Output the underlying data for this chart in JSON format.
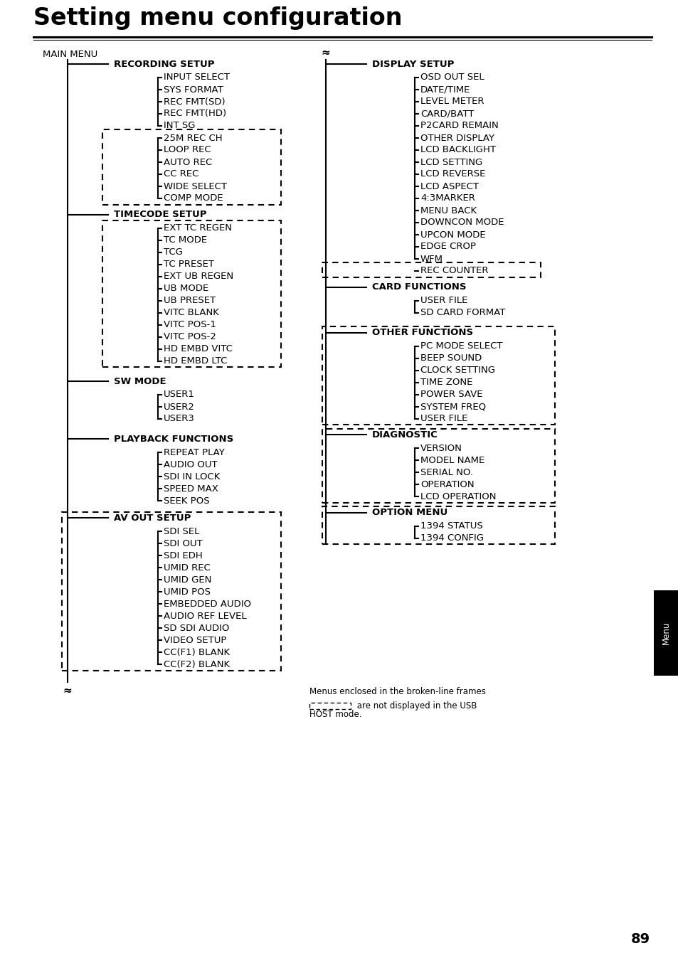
{
  "title": "Setting menu configuration",
  "bg_color": "#ffffff",
  "text_color": "#000000",
  "title_fontsize": 24,
  "body_fontsize": 9.5,
  "page_number": "89",
  "tab_label": "Menu",
  "footer_text1": "Menus enclosed in the broken-line frames",
  "footer_text2": " are not displayed in the USB",
  "footer_text3": "HOST mode.",
  "left_sections": [
    {
      "name": "RECORDING SETUP",
      "solid_items": [
        "INPUT SELECT",
        "SYS FORMAT",
        "REC FMT(SD)",
        "REC FMT(HD)",
        "INT SG"
      ],
      "dashed_items": [
        "25M REC CH",
        "LOOP REC",
        "AUTO REC",
        "CC REC",
        "WIDE SELECT",
        "COMP MODE"
      ],
      "has_dashed_box": true,
      "dashed_includes_section": false
    },
    {
      "name": "TIMECODE SETUP",
      "solid_items": [
        "EXT TC REGEN",
        "TC MODE",
        "TCG",
        "TC PRESET",
        "EXT UB REGEN",
        "UB MODE",
        "UB PRESET",
        "VITC BLANK",
        "VITC POS-1",
        "VITC POS-2",
        "HD EMBD VITC",
        "HD EMBD LTC"
      ],
      "dashed_items": [],
      "has_dashed_box": true,
      "dashed_includes_section": false
    },
    {
      "name": "SW MODE",
      "solid_items": [
        "USER1",
        "USER2",
        "USER3"
      ],
      "dashed_items": [],
      "has_dashed_box": false,
      "dashed_includes_section": false
    },
    {
      "name": "PLAYBACK FUNCTIONS",
      "solid_items": [
        "REPEAT PLAY",
        "AUDIO OUT",
        "SDI IN LOCK",
        "SPEED MAX",
        "SEEK POS"
      ],
      "dashed_items": [],
      "has_dashed_box": false,
      "dashed_includes_section": false
    },
    {
      "name": "AV OUT SETUP",
      "solid_items": [
        "SDI SEL",
        "SDI OUT",
        "SDI EDH",
        "UMID REC",
        "UMID GEN",
        "UMID POS",
        "EMBEDDED AUDIO",
        "AUDIO REF LEVEL",
        "SD SDI AUDIO",
        "VIDEO SETUP",
        "CC(F1) BLANK",
        "CC(F2) BLANK"
      ],
      "dashed_items": [],
      "has_dashed_box": true,
      "dashed_includes_section": true
    }
  ],
  "right_sections": [
    {
      "name": "DISPLAY SETUP",
      "solid_items": [
        "OSD OUT SEL",
        "DATE/TIME",
        "LEVEL METER",
        "CARD/BATT",
        "P2CARD REMAIN",
        "OTHER DISPLAY",
        "LCD BACKLIGHT",
        "LCD SETTING",
        "LCD REVERSE",
        "LCD ASPECT",
        "4:3MARKER",
        "MENU BACK",
        "DOWNCON MODE",
        "UPCON MODE",
        "EDGE CROP",
        "WFM"
      ],
      "dashed_items": [
        "REC COUNTER"
      ],
      "has_dashed_box": true,
      "dashed_includes_section": false
    },
    {
      "name": "CARD FUNCTIONS",
      "solid_items": [
        "USER FILE",
        "SD CARD FORMAT"
      ],
      "dashed_items": [],
      "has_dashed_box": false,
      "dashed_includes_section": false
    },
    {
      "name": "OTHER FUNCTIONS",
      "solid_items": [
        "PC MODE SELECT",
        "BEEP SOUND",
        "CLOCK SETTING",
        "TIME ZONE",
        "POWER SAVE",
        "SYSTEM FREQ",
        "USER FILE"
      ],
      "dashed_items": [],
      "has_dashed_box": true,
      "dashed_includes_section": false
    },
    {
      "name": "DIAGNOSTIC",
      "solid_items": [
        "VERSION",
        "MODEL NAME",
        "SERIAL NO.",
        "OPERATION",
        "LCD OPERATION"
      ],
      "dashed_items": [],
      "has_dashed_box": true,
      "dashed_includes_section": false
    },
    {
      "name": "OPTION MENU",
      "solid_items": [
        "1394 STATUS",
        "1394 CONFIG"
      ],
      "dashed_items": [],
      "has_dashed_box": true,
      "dashed_includes_section": true
    }
  ]
}
